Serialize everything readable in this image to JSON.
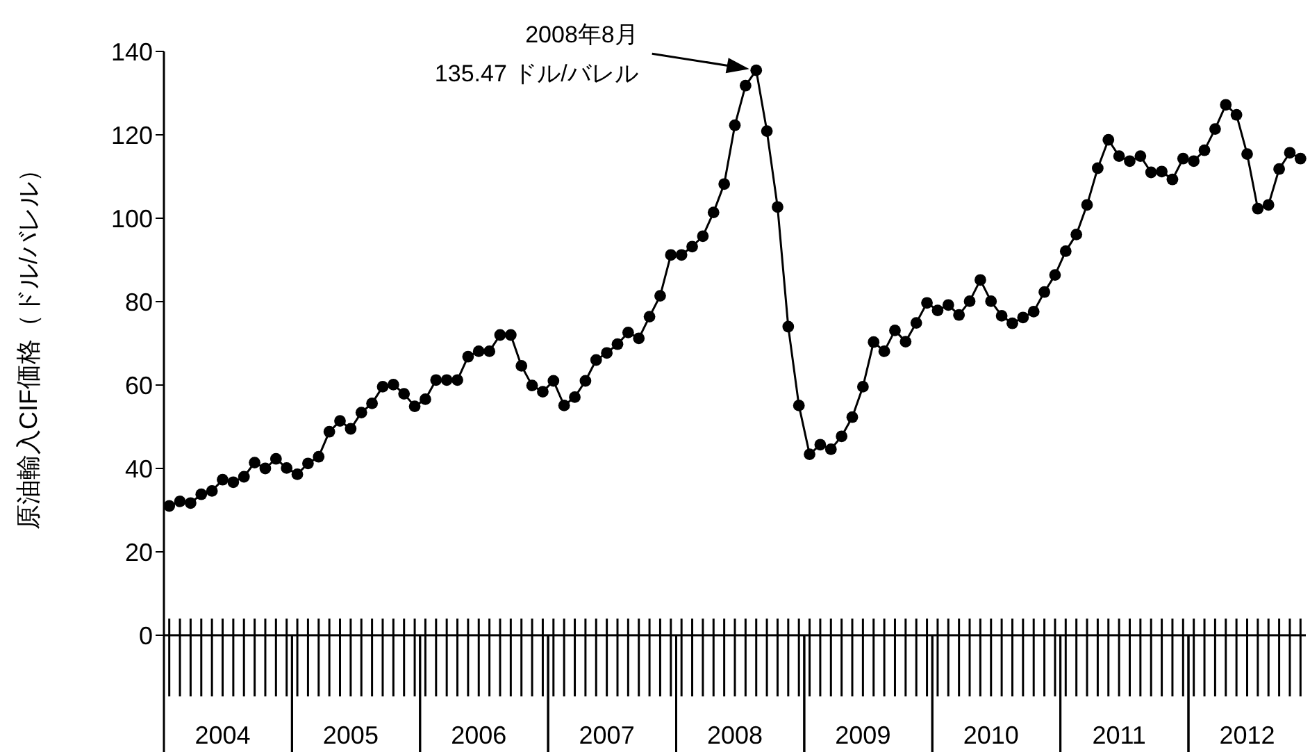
{
  "chart_data": {
    "type": "line",
    "ylabel": "原油輸入CIF価格（ドル/バレル）",
    "categories": [
      null,
      null,
      null,
      null,
      null,
      "2004",
      null,
      null,
      null,
      null,
      null,
      null,
      null,
      null,
      null,
      null,
      null,
      "2005",
      null,
      null,
      null,
      null,
      null,
      null,
      null,
      null,
      null,
      null,
      null,
      "2006",
      null,
      null,
      null,
      null,
      null,
      null,
      null,
      null,
      null,
      null,
      null,
      "2007",
      null,
      null,
      null,
      null,
      null,
      null,
      null,
      null,
      null,
      null,
      null,
      "2008",
      null,
      null,
      null,
      null,
      null,
      null,
      null,
      null,
      null,
      null,
      null,
      "2009",
      null,
      null,
      null,
      null,
      null,
      null,
      null,
      null,
      null,
      null,
      null,
      "2010",
      null,
      null,
      null,
      null,
      null,
      null,
      null,
      null,
      null,
      null,
      null,
      "2011",
      null,
      null,
      null,
      null,
      null,
      null,
      null,
      null,
      null,
      null,
      null,
      "2012",
      null,
      null,
      null,
      null,
      null
    ],
    "series": [
      {
        "color": "#000000",
        "values": [
          31,
          32.1,
          31.7,
          33.8,
          34.6,
          37.3,
          36.7,
          38,
          41.4,
          40,
          42.3,
          40.1,
          38.6,
          41.2,
          42.8,
          48.8,
          51.4,
          49.5,
          53.4,
          55.6,
          59.6,
          60.1,
          57.9,
          54.9,
          56.6,
          61.2,
          61.2,
          61.2,
          66.8,
          68.1,
          68.1,
          72,
          72,
          64.6,
          59.9,
          58.4,
          61,
          55.1,
          57.1,
          61,
          66,
          67.7,
          69.8,
          72.6,
          71.2,
          76.4,
          81.4,
          91.2,
          91.2,
          93.2,
          95.7,
          101.4,
          108.2,
          122.3,
          131.8,
          135.47,
          120.9,
          102.7,
          74,
          55.1,
          43.4,
          45.7,
          44.6,
          47.7,
          52.3,
          59.6,
          70.3,
          68.1,
          73.1,
          70.4,
          74.9,
          79.7,
          77.9,
          79.2,
          76.8,
          80.1,
          85.2,
          80.1,
          76.6,
          74.8,
          76.2,
          77.6,
          82.3,
          86.4,
          92.1,
          96.1,
          103.2,
          112,
          118.8,
          114.9,
          113.7,
          114.9,
          111,
          111.2,
          109.3,
          114.3,
          113.7,
          116.3,
          121.4,
          127.2,
          124.8,
          115.4,
          102.3,
          103.2,
          111.8,
          115.7,
          114.3
        ]
      }
    ],
    "ylim": [
      0,
      140
    ],
    "yticks": [
      0,
      20,
      40,
      60,
      80,
      100,
      120,
      140
    ],
    "grid": false,
    "legend": false,
    "marker": "circle",
    "line_style": "solid",
    "annotations": [
      "2008年8月\n135.47 ドル/バレル"
    ]
  }
}
